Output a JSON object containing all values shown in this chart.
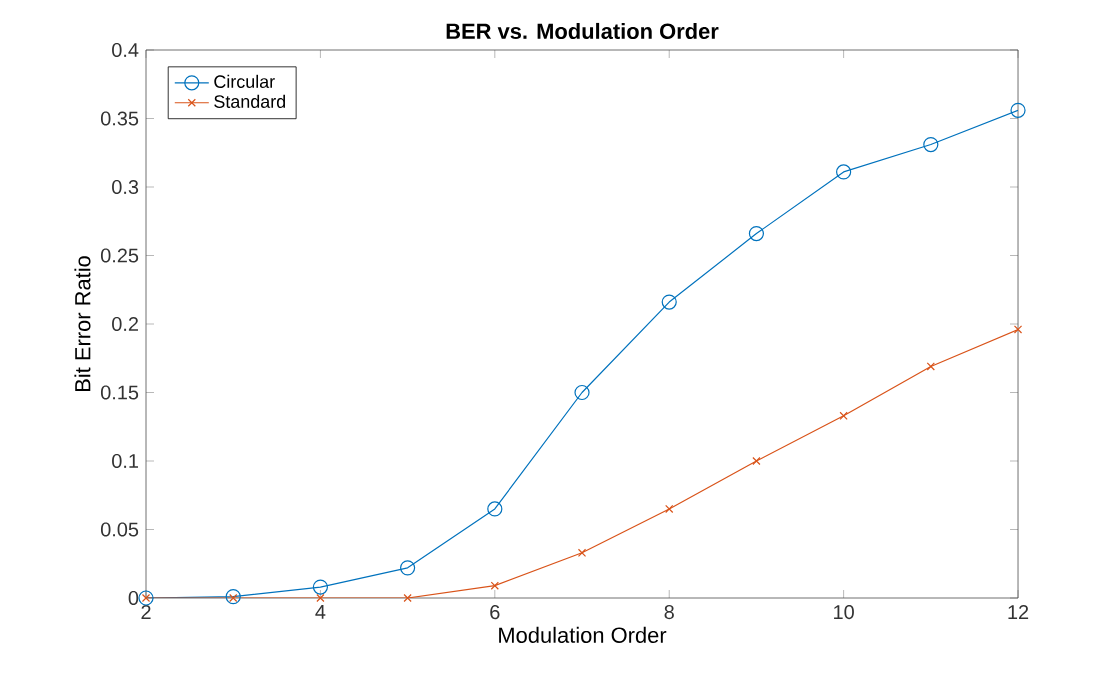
{
  "chart_data": {
    "type": "line",
    "title": "BER vs. Modulation Order",
    "xlabel": "Modulation Order",
    "ylabel": "Bit Error Ratio",
    "x": [
      2,
      3,
      4,
      5,
      6,
      7,
      8,
      9,
      10,
      11,
      12
    ],
    "series": [
      {
        "name": "Circular",
        "color": "#0072bd",
        "marker": "circle",
        "values": [
          0,
          0.001,
          0.008,
          0.022,
          0.065,
          0.15,
          0.216,
          0.266,
          0.311,
          0.331,
          0.356
        ]
      },
      {
        "name": "Standard",
        "color": "#d95319",
        "marker": "cross",
        "values": [
          0,
          0,
          0,
          0,
          0.009,
          0.033,
          0.065,
          0.1,
          0.133,
          0.169,
          0.196
        ]
      }
    ],
    "xlim": [
      2,
      12
    ],
    "xticks": [
      2,
      4,
      6,
      8,
      10,
      12
    ],
    "ylim": [
      0,
      0.4
    ],
    "yticks": [
      0,
      0.05,
      0.1,
      0.15,
      0.2,
      0.25,
      0.3,
      0.35,
      0.4
    ],
    "legend": "top left",
    "grid": false,
    "line_style": "solid"
  }
}
